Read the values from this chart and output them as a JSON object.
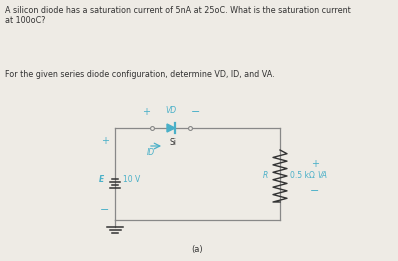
{
  "text_line1": "A silicon diode has a saturation current of 5nA at 25oC. What is the saturation current",
  "text_line2": "at 100oC?",
  "text_line3": "For the given series diode configuration, determine VD, ID, and VA.",
  "circuit_label_a": "(a)",
  "label_E": "E",
  "label_10V": "10 V",
  "label_Si": "Si",
  "label_R": "R",
  "label_R_val": "0.5 kΩ",
  "label_VD": "VD",
  "label_ID": "ID",
  "label_Va": "VA",
  "bg_color": "#eeebe5",
  "circuit_color": "#4ab0c8",
  "wire_color": "#888888",
  "text_color": "#333333",
  "figsize": [
    3.98,
    2.61
  ],
  "dpi": 100
}
